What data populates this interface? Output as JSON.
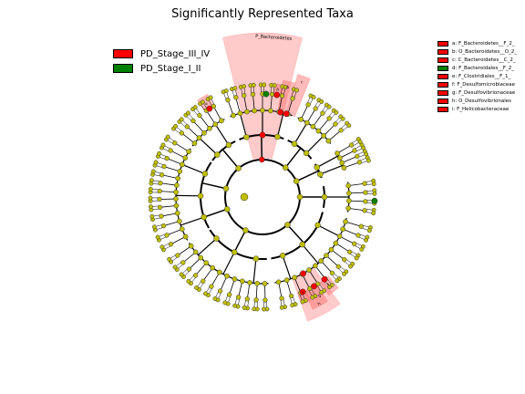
{
  "title": "Significantly Represented Taxa",
  "legend_groups": [
    {
      "label": "PD_Stage_III_IV",
      "color": "#ff0000"
    },
    {
      "label": "PD_Stage_I_II",
      "color": "#008000"
    }
  ],
  "taxa_legend": [
    {
      "label": "a: F_Bacteroidetes__F_2_",
      "color": "#ff0000"
    },
    {
      "label": "b: O_Bacteroidetes__O_2_",
      "color": "#ff0000"
    },
    {
      "label": "c: C_Bacteroidetes__C_2_",
      "color": "#ff0000"
    },
    {
      "label": "d: F_Bacteroidales__F_2_",
      "color": "#008000"
    },
    {
      "label": "e: F_Clostridiales__F_1_",
      "color": "#ff0000"
    },
    {
      "label": "f: F_Desulfomicrobiaceae",
      "color": "#ff0000"
    },
    {
      "label": "g: F_Desulfovibrionaceae",
      "color": "#ff0000"
    },
    {
      "label": "h: O_Desulfovibrionales",
      "color": "#ff0000"
    },
    {
      "label": "i: F_Helicobacteraceae",
      "color": "#ff0000"
    }
  ],
  "clade_labels": {
    "phylum": "P_Bacteroidetes",
    "a": "a",
    "b": "b",
    "c": "c",
    "e": "e",
    "f": "f",
    "g": "g",
    "h": "h",
    "i": "i"
  },
  "colors": {
    "node_default": "#bfbf00",
    "enriched_III_IV": "#ff0000",
    "enriched_I_II": "#008000",
    "highlight": "#ff6666"
  }
}
